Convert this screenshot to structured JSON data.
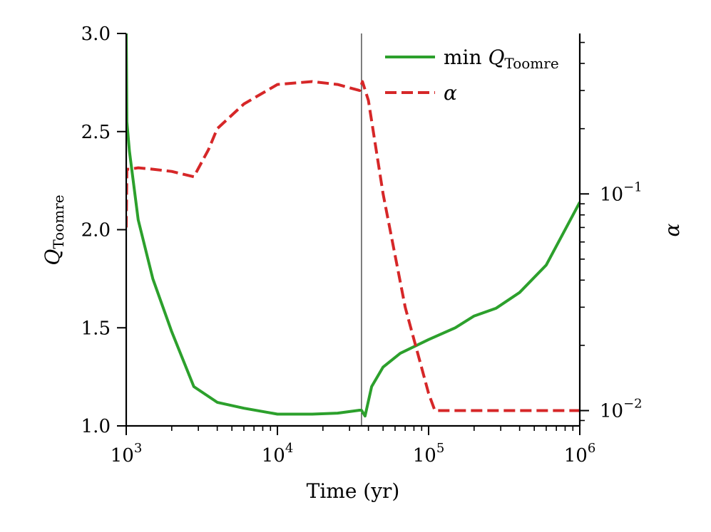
{
  "chart_data": {
    "type": "line",
    "title": "",
    "xlabel": "Time (yr)",
    "ylabel_left": {
      "base": "Q",
      "sub": "Toomre"
    },
    "ylabel_right": "α",
    "x_scale": "log",
    "xlim": [
      1000,
      1000000
    ],
    "ylim_left": [
      1.0,
      3.0
    ],
    "ylim_right": [
      0.0085,
      0.55
    ],
    "y_right_scale": "log",
    "x_ticks": [
      {
        "value": 1000,
        "base": "10",
        "exp": "3"
      },
      {
        "value": 10000,
        "base": "10",
        "exp": "4"
      },
      {
        "value": 100000,
        "base": "10",
        "exp": "5"
      },
      {
        "value": 1000000,
        "base": "10",
        "exp": "6"
      }
    ],
    "y_left_ticks": [
      {
        "value": 1.0,
        "label": "1.0"
      },
      {
        "value": 1.5,
        "label": "1.5"
      },
      {
        "value": 2.0,
        "label": "2.0"
      },
      {
        "value": 2.5,
        "label": "2.5"
      },
      {
        "value": 3.0,
        "label": "3.0"
      }
    ],
    "y_right_ticks": [
      {
        "value": 0.01,
        "base": "10",
        "exp": "−2"
      },
      {
        "value": 0.1,
        "base": "10",
        "exp": "−1"
      }
    ],
    "vline_x": 36000,
    "legend_position": "top-right",
    "series": [
      {
        "name": "min Q_Toomre",
        "legend": {
          "prefix": "min ",
          "base": "Q",
          "sub": "Toomre"
        },
        "axis": "left",
        "color": "#2ca02c",
        "style": "solid",
        "x": [
          1000,
          1010,
          1050,
          1200,
          1500,
          2000,
          2800,
          4000,
          6000,
          10000,
          17000,
          25000,
          35000,
          36000,
          38000,
          42000,
          50000,
          65000,
          100000,
          150000,
          200000,
          280000,
          400000,
          600000,
          1000000
        ],
        "y": [
          3.0,
          2.55,
          2.4,
          2.05,
          1.75,
          1.48,
          1.2,
          1.12,
          1.09,
          1.06,
          1.06,
          1.065,
          1.08,
          1.08,
          1.05,
          1.2,
          1.3,
          1.37,
          1.44,
          1.5,
          1.56,
          1.6,
          1.68,
          1.82,
          2.14
        ]
      },
      {
        "name": "α",
        "legend": {
          "prefix": "",
          "base": "α",
          "sub": ""
        },
        "axis": "right",
        "color": "#d62728",
        "style": "dashed",
        "x": [
          1000,
          1010,
          1050,
          1200,
          1500,
          2000,
          2800,
          3500,
          4000,
          6000,
          10000,
          17000,
          25000,
          35000,
          36500,
          40000,
          50000,
          70000,
          100000,
          110000,
          1000000
        ],
        "y": [
          0.07,
          0.13,
          0.13,
          0.132,
          0.13,
          0.127,
          0.12,
          0.16,
          0.2,
          0.26,
          0.32,
          0.33,
          0.32,
          0.3,
          0.33,
          0.27,
          0.1,
          0.03,
          0.012,
          0.01,
          0.01
        ]
      }
    ]
  }
}
